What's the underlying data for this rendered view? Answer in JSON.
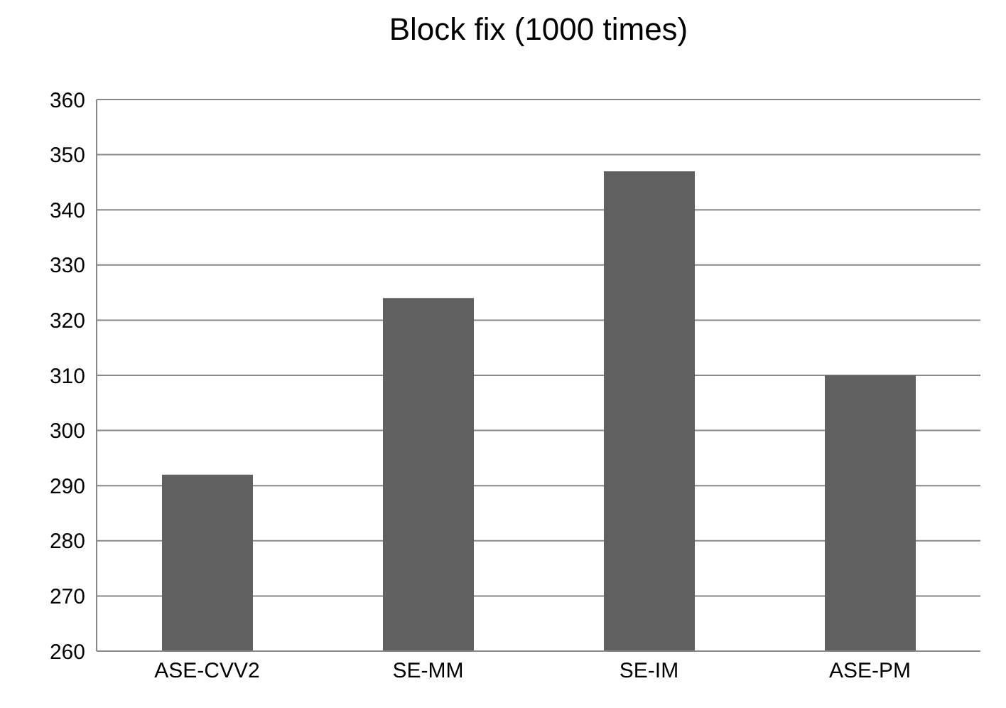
{
  "chart_data": {
    "type": "bar",
    "title": "Block fix (1000 times)",
    "categories": [
      "ASE-CVV2",
      "SE-MM",
      "SE-IM",
      "ASE-PM"
    ],
    "values": [
      292,
      324,
      347,
      310
    ],
    "color": "#606060",
    "ylim": [
      260,
      360
    ],
    "yticks": [
      260,
      270,
      280,
      290,
      300,
      310,
      320,
      330,
      340,
      350,
      360
    ],
    "grid": "y"
  }
}
